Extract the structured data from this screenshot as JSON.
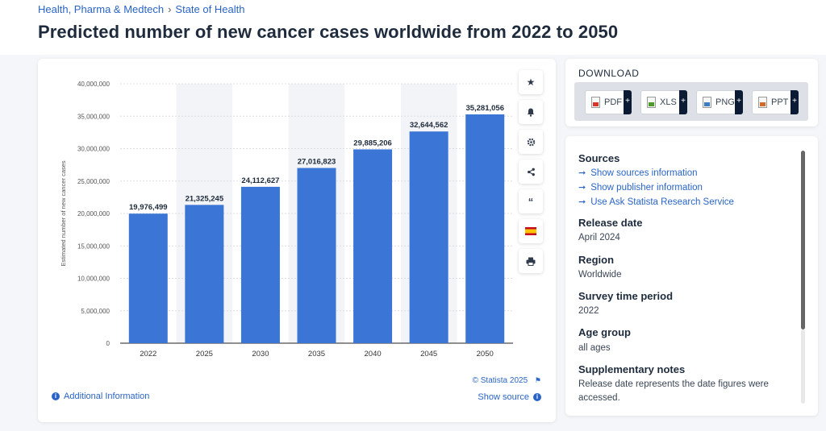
{
  "breadcrumb": {
    "category": "Health, Pharma & Medtech",
    "separator": "›",
    "section": "State of Health"
  },
  "page_title": "Predicted number of new cancer cases worldwide from 2022 to 2050",
  "chart_tools": [
    "star-icon",
    "bell-icon",
    "gear-icon",
    "share-icon",
    "quote-icon",
    "spain-flag-icon",
    "print-icon"
  ],
  "chart_footer": {
    "additional_info": "Additional Information",
    "copyright": "© Statista 2025",
    "show_source": "Show source"
  },
  "download": {
    "title": "DOWNLOAD",
    "buttons": [
      {
        "label": "PDF",
        "plus": "+",
        "color": "#d9342b"
      },
      {
        "label": "XLS",
        "plus": "+",
        "color": "#4c9a2a"
      },
      {
        "label": "PNG",
        "plus": "+",
        "color": "#3b7cc4"
      },
      {
        "label": "PPT",
        "plus": "+",
        "color": "#d26a2a"
      }
    ]
  },
  "info": {
    "sources_title": "Sources",
    "links": [
      "Show sources information",
      "Show publisher information",
      "Use Ask Statista Research Service"
    ],
    "release_date_title": "Release date",
    "release_date": "April 2024",
    "region_title": "Region",
    "region": "Worldwide",
    "survey_title": "Survey time period",
    "survey": "2022",
    "age_title": "Age group",
    "age": "all ages",
    "notes_title": "Supplementary notes",
    "notes": "Release date represents the date figures were accessed."
  },
  "chart_data": {
    "type": "bar",
    "categories": [
      "2022",
      "2025",
      "2030",
      "2035",
      "2040",
      "2045",
      "2050"
    ],
    "values": [
      19976499,
      21325245,
      24112627,
      27016823,
      29885206,
      32644562,
      35281056
    ],
    "value_labels": [
      "19,976,499",
      "21,325,245",
      "24,112,627",
      "27,016,823",
      "29,885,206",
      "32,644,562",
      "35,281,056"
    ],
    "ylabel": "Estimated number of new cancer cases",
    "ylim": [
      0,
      40000000
    ],
    "yticks": [
      0,
      5000000,
      10000000,
      15000000,
      20000000,
      25000000,
      30000000,
      35000000,
      40000000
    ],
    "ytick_labels": [
      "0",
      "5,000,000",
      "10,000,000",
      "15,000,000",
      "20,000,000",
      "25,000,000",
      "30,000,000",
      "35,000,000",
      "40,000,000"
    ],
    "bar_color": "#3b76d6",
    "grid": true
  }
}
